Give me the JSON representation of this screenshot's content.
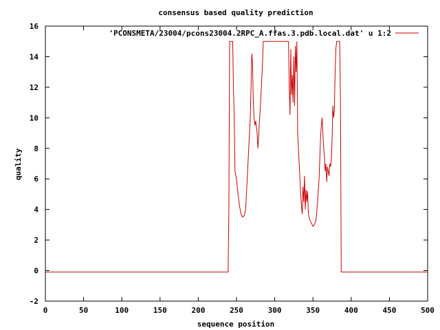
{
  "chart_data": {
    "type": "line",
    "title": "consensus based quality prediction",
    "xlabel": "sequence position",
    "ylabel": "quality",
    "xlim": [
      0,
      500
    ],
    "ylim": [
      -2,
      16
    ],
    "xticks": [
      0,
      50,
      100,
      150,
      200,
      250,
      300,
      350,
      400,
      450,
      500
    ],
    "yticks": [
      -2,
      0,
      2,
      4,
      6,
      8,
      10,
      12,
      14,
      16
    ],
    "grid": false,
    "legend_position": "top-right",
    "series": [
      {
        "name": "'PCONSMETA/23004/pcons23004.2RPC_A.ffas.3.pdb.local.dat' u 1:2",
        "color": "#cc0000",
        "points": [
          [
            0,
            -0.1
          ],
          [
            239,
            -0.1
          ],
          [
            240,
            3.8
          ],
          [
            241,
            15
          ],
          [
            245,
            15
          ],
          [
            246,
            12
          ],
          [
            247,
            10
          ],
          [
            248,
            6.5
          ],
          [
            250,
            6
          ],
          [
            252,
            5
          ],
          [
            254,
            4.2
          ],
          [
            256,
            3.7
          ],
          [
            258,
            3.5
          ],
          [
            260,
            3.6
          ],
          [
            262,
            4
          ],
          [
            264,
            6
          ],
          [
            266,
            8
          ],
          [
            268,
            10
          ],
          [
            269,
            12
          ],
          [
            270,
            14.2
          ],
          [
            271,
            13.5
          ],
          [
            272,
            11
          ],
          [
            273,
            10
          ],
          [
            274,
            9.5
          ],
          [
            275,
            9.8
          ],
          [
            276,
            9.4
          ],
          [
            277,
            9
          ],
          [
            278,
            8
          ],
          [
            279,
            8.8
          ],
          [
            280,
            9.8
          ],
          [
            281,
            10.5
          ],
          [
            282,
            11.5
          ],
          [
            283,
            12.5
          ],
          [
            284,
            13.5
          ],
          [
            285,
            15
          ],
          [
            318,
            15
          ],
          [
            319,
            12
          ],
          [
            320,
            10.2
          ],
          [
            321,
            14.5
          ],
          [
            322,
            11.5
          ],
          [
            323,
            12.8
          ],
          [
            324,
            11
          ],
          [
            325,
            14
          ],
          [
            326,
            10.8
          ],
          [
            327,
            14.7
          ],
          [
            328,
            13
          ],
          [
            329,
            15
          ],
          [
            330,
            9
          ],
          [
            331,
            8
          ],
          [
            332,
            7
          ],
          [
            333,
            6
          ],
          [
            334,
            5
          ],
          [
            335,
            4.2
          ],
          [
            336,
            3.7
          ],
          [
            337,
            5.5
          ],
          [
            338,
            4.5
          ],
          [
            339,
            6.2
          ],
          [
            340,
            4
          ],
          [
            341,
            5.3
          ],
          [
            342,
            4.5
          ],
          [
            343,
            5.2
          ],
          [
            344,
            3.7
          ],
          [
            345,
            3.5
          ],
          [
            346,
            3.3
          ],
          [
            348,
            3.1
          ],
          [
            350,
            2.9
          ],
          [
            352,
            3
          ],
          [
            354,
            3.3
          ],
          [
            356,
            4.5
          ],
          [
            358,
            6
          ],
          [
            360,
            8.8
          ],
          [
            361,
            9.5
          ],
          [
            362,
            10
          ],
          [
            363,
            9
          ],
          [
            364,
            8
          ],
          [
            365,
            7.5
          ],
          [
            366,
            6.5
          ],
          [
            367,
            7
          ],
          [
            368,
            5.8
          ],
          [
            369,
            6.8
          ],
          [
            370,
            6.5
          ],
          [
            371,
            6.2
          ],
          [
            372,
            7
          ],
          [
            373,
            6.8
          ],
          [
            374,
            7.2
          ],
          [
            375,
            8.5
          ],
          [
            376,
            10.8
          ],
          [
            377,
            10
          ],
          [
            378,
            10.5
          ],
          [
            379,
            13
          ],
          [
            380,
            14.5
          ],
          [
            381,
            15
          ],
          [
            385,
            15
          ],
          [
            386,
            11
          ],
          [
            387,
            -0.1
          ],
          [
            500,
            -0.1
          ]
        ]
      }
    ]
  }
}
